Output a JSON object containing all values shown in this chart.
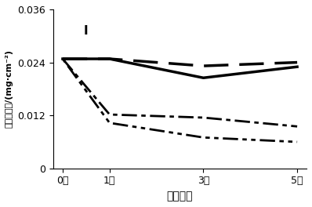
{
  "x": [
    0,
    1,
    3,
    5
  ],
  "xtick_labels": [
    "0次",
    "1次",
    "3次",
    "5次"
  ],
  "xlabel": "锻炼次数",
  "ylabel": "叶绿素含量/(mg·cm⁻²)",
  "ylim": [
    0,
    0.036
  ],
  "yticks": [
    0,
    0.012,
    0.024,
    0.036
  ],
  "annotation": "I",
  "lines": [
    {
      "y": [
        0.0248,
        0.0248,
        0.0205,
        0.023
      ],
      "color": "#000000",
      "linewidth": 2.5,
      "linestyle": "solid",
      "dashes": null
    },
    {
      "y": [
        0.0248,
        0.0248,
        0.0232,
        0.024
      ],
      "color": "#000000",
      "linewidth": 2.5,
      "linestyle": "dashed",
      "dashes": [
        9,
        4
      ]
    },
    {
      "y": [
        0.0248,
        0.0122,
        0.0115,
        0.0095
      ],
      "color": "#000000",
      "linewidth": 2.0,
      "linestyle": "dashdot",
      "dashes": [
        7,
        2,
        2,
        2
      ]
    },
    {
      "y": [
        0.0248,
        0.0103,
        0.007,
        0.006
      ],
      "color": "#000000",
      "linewidth": 2.0,
      "linestyle": "dashdotdot",
      "dashes": [
        2,
        2,
        7,
        2,
        2,
        2
      ]
    }
  ],
  "background_color": "#ffffff",
  "annotation_fontsize": 11,
  "label_fontsize": 9,
  "tick_fontsize": 9,
  "xlabel_fontsize": 10,
  "ylabel_fontsize": 8
}
